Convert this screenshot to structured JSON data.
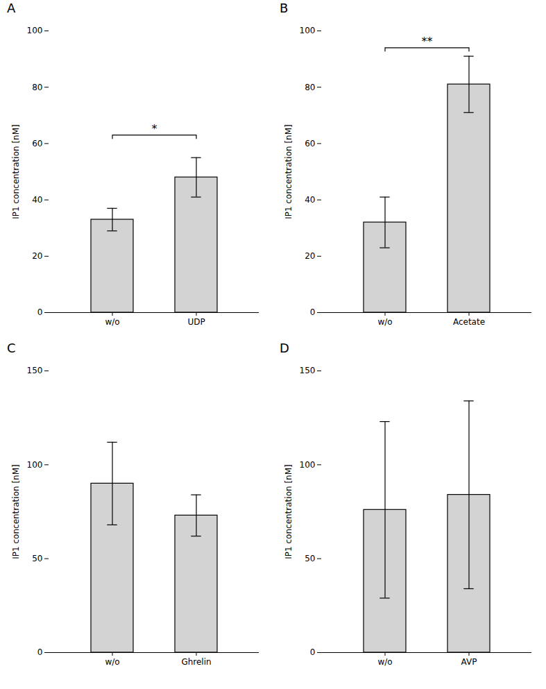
{
  "chart_data": [
    {
      "type": "bar",
      "title": "A",
      "categories": [
        "w/o",
        "UDP"
      ],
      "values": [
        33,
        48
      ],
      "errors": [
        4,
        7
      ],
      "ylim": [
        0,
        100
      ],
      "yticks": [
        0,
        20,
        40,
        60,
        80,
        100
      ],
      "ylabel": "IP1 concentration [nM]",
      "color": "#d3d3d3",
      "grid": false,
      "annotations": [
        {
          "text": "*",
          "from": "w/o",
          "to": "UDP",
          "bracket_y": 63,
          "text_y": 64
        }
      ]
    },
    {
      "type": "bar",
      "title": "B",
      "categories": [
        "w/o",
        "Acetate"
      ],
      "values": [
        32,
        81
      ],
      "errors": [
        9,
        10
      ],
      "ylim": [
        0,
        100
      ],
      "yticks": [
        0,
        20,
        40,
        60,
        80,
        100
      ],
      "ylabel": "IP1 concentration [nM]",
      "color": "#d3d3d3",
      "grid": false,
      "annotations": [
        {
          "text": "**",
          "from": "w/o",
          "to": "Acetate",
          "bracket_y": 94,
          "text_y": 95
        }
      ]
    },
    {
      "type": "bar",
      "title": "C",
      "categories": [
        "w/o",
        "Ghrelin"
      ],
      "values": [
        90,
        73
      ],
      "errors": [
        22,
        11
      ],
      "ylim": [
        0,
        150
      ],
      "yticks": [
        0,
        50,
        100,
        150
      ],
      "ylabel": "IP1 concentration [nM]",
      "color": "#d3d3d3",
      "grid": false
    },
    {
      "type": "bar",
      "title": "D",
      "categories": [
        "w/o",
        "AVP"
      ],
      "values": [
        76,
        84
      ],
      "errors": [
        47,
        50
      ],
      "ylim": [
        0,
        150
      ],
      "yticks": [
        0,
        50,
        100,
        150
      ],
      "ylabel": "IP1 concentration [nM]",
      "color": "#d3d3d3",
      "grid": false
    }
  ]
}
